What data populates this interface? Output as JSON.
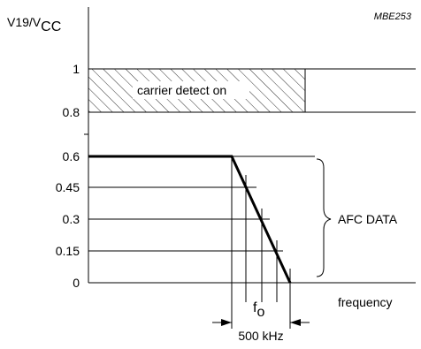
{
  "figure_id": "MBE253",
  "y_axis": {
    "label_main": "V19/V",
    "label_sub": "CC",
    "ticks": [
      "1",
      "0.8",
      "0.6",
      "0.45",
      "0.3",
      "0.15",
      "0"
    ]
  },
  "region_label": "carrier detect on",
  "afc_label": "AFC DATA",
  "x_axis_label": "frequency",
  "f_label": {
    "main": "f",
    "sub": "o"
  },
  "bandwidth_label": "500 kHz"
}
